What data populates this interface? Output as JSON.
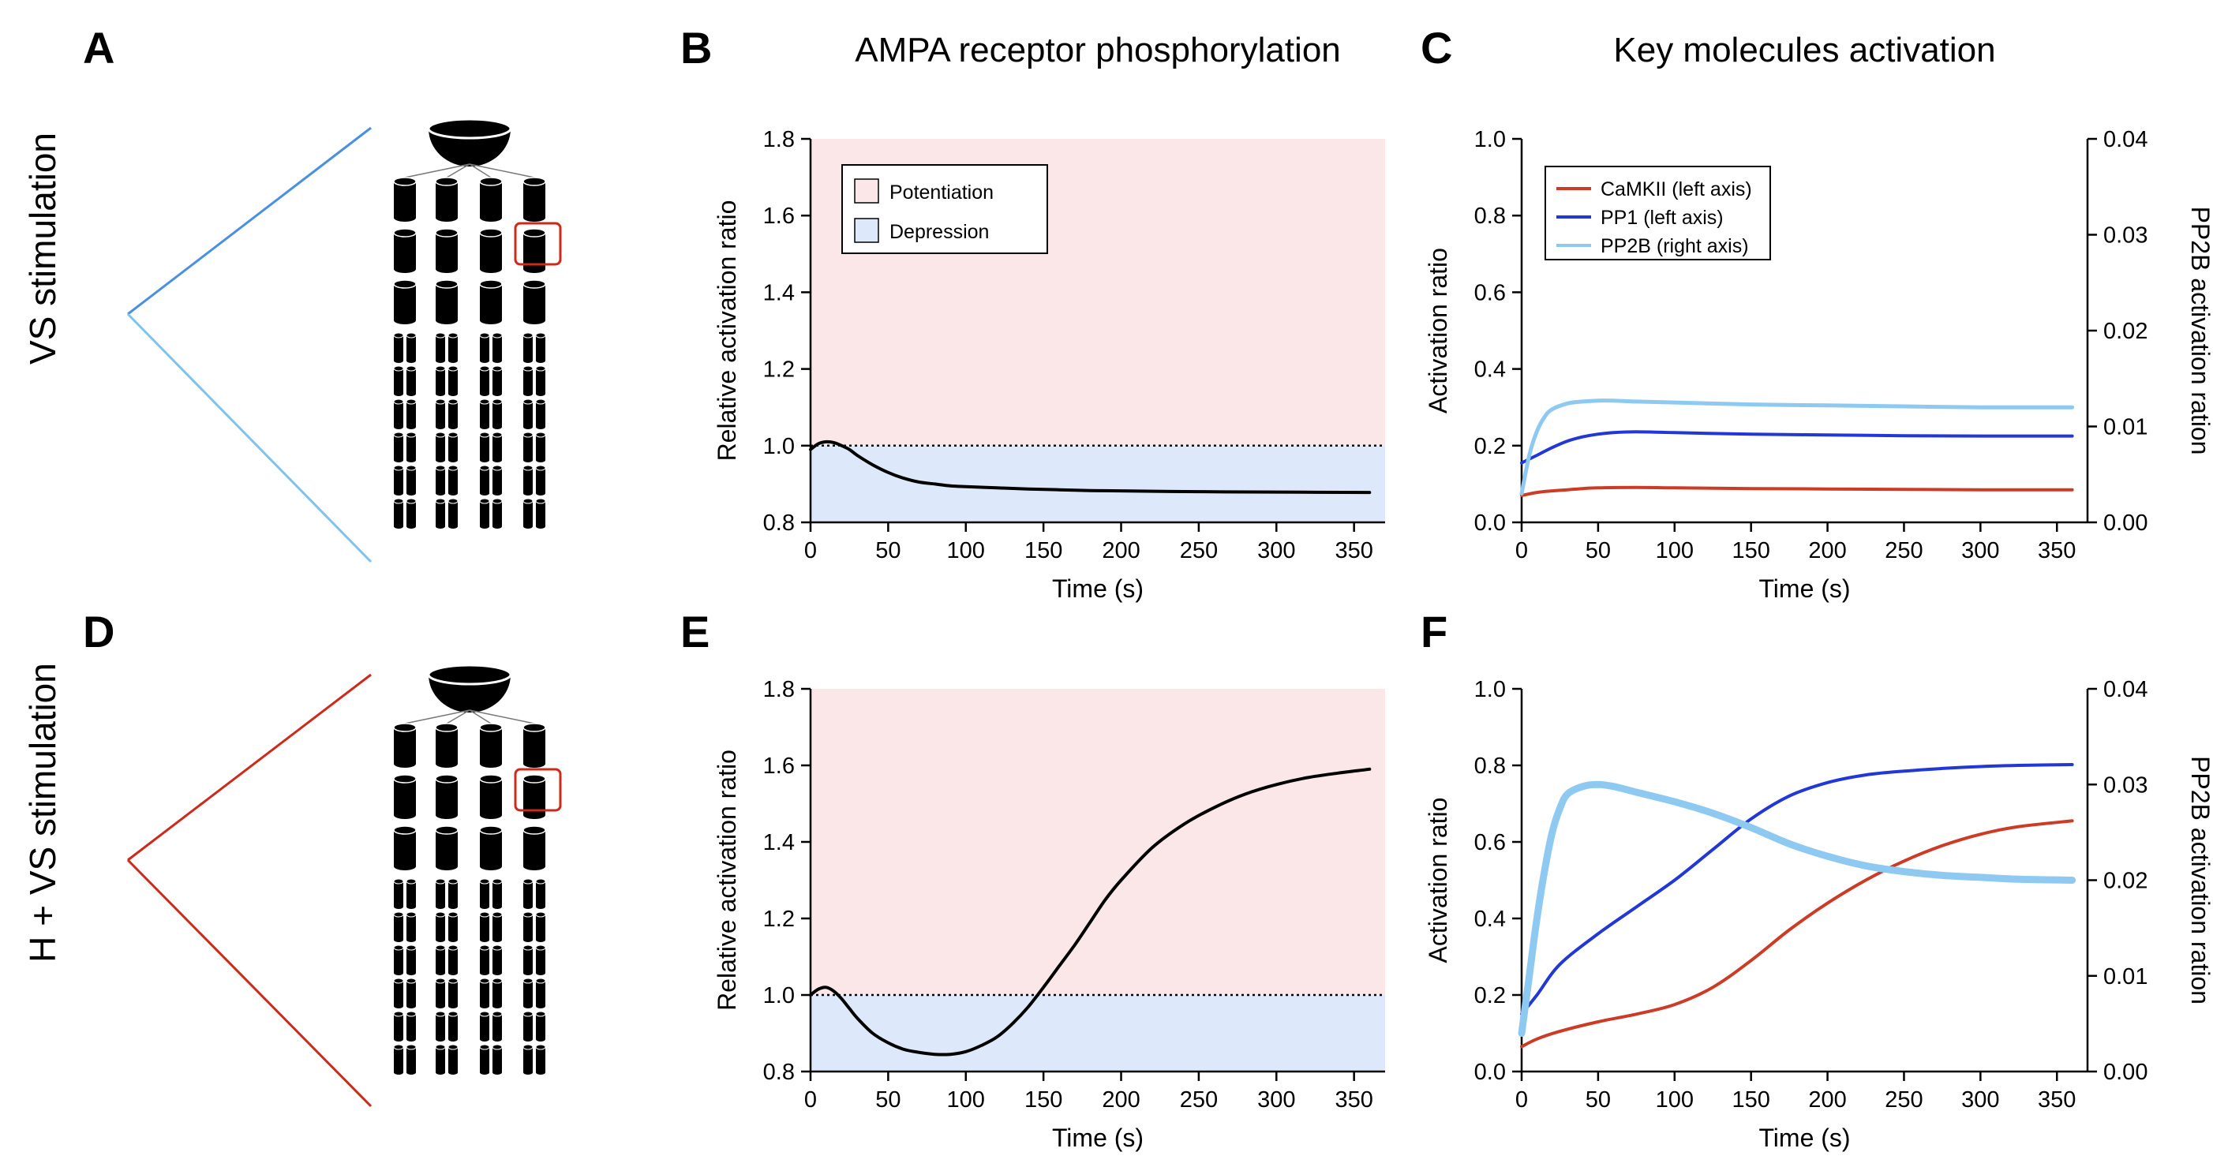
{
  "panel_labels": [
    "A",
    "B",
    "C",
    "D",
    "E",
    "F"
  ],
  "row_labels": {
    "top": "VS stimulation",
    "bottom": "H + VS stimulation"
  },
  "colors": {
    "potentiation_bg": "#fbe7e7",
    "depression_bg": "#dde9fa",
    "camkii": "#cc3b26",
    "pp1": "#2137d6",
    "pp2b": "#8ec9f2",
    "top_wedge_upper": "#4a90e2",
    "top_wedge_lower": "#7ec3ec",
    "bottom_wedge": "#cc2a1a",
    "highlight_box": "#cc2a1a"
  },
  "diagram": {
    "icons": [
      "bowl-icon",
      "cylinder-icon",
      "highlight-box"
    ],
    "columns": 4,
    "big_rows": 3,
    "small_rows": 6
  },
  "chart_data": [
    {
      "id": "B",
      "type": "line",
      "title": "AMPA receptor phosphorylation",
      "xlabel": "Time (s)",
      "ylabel": "Relative activation ratio",
      "xlim": [
        0,
        370
      ],
      "ylim": [
        0.8,
        1.8
      ],
      "xticks": [
        0,
        50,
        100,
        150,
        200,
        250,
        300,
        350
      ],
      "yticks": [
        0.8,
        1.0,
        1.2,
        1.4,
        1.6,
        1.8
      ],
      "reference_line": 1.0,
      "regions": [
        {
          "name": "Potentiation",
          "from": 1.0,
          "to": 1.8
        },
        {
          "name": "Depression",
          "from": 0.8,
          "to": 1.0
        }
      ],
      "legend": [
        "Potentiation",
        "Depression"
      ],
      "legend_position": "top-left",
      "series": [
        {
          "x": [
            0,
            5,
            10,
            15,
            20,
            25,
            30,
            40,
            50,
            60,
            70,
            80,
            90,
            100,
            120,
            140,
            160,
            180,
            200,
            250,
            300,
            360
          ],
          "y": [
            0.99,
            1.005,
            1.01,
            1.008,
            1.0,
            0.99,
            0.975,
            0.95,
            0.93,
            0.915,
            0.905,
            0.9,
            0.895,
            0.893,
            0.89,
            0.887,
            0.885,
            0.883,
            0.882,
            0.88,
            0.879,
            0.878
          ]
        }
      ]
    },
    {
      "id": "C",
      "type": "line",
      "title": "Key molecules activation",
      "xlabel": "Time (s)",
      "ylabel": "Activation  ratio",
      "y2label": "PP2B activation ration",
      "xlim": [
        0,
        370
      ],
      "ylim": [
        0,
        1.0
      ],
      "y2lim": [
        0,
        0.04
      ],
      "xticks": [
        0,
        50,
        100,
        150,
        200,
        250,
        300,
        350
      ],
      "yticks": [
        0.0,
        0.2,
        0.4,
        0.6,
        0.8,
        1.0
      ],
      "y2ticks": [
        0.0,
        0.01,
        0.02,
        0.03,
        0.04
      ],
      "legend_position": "top-left",
      "series": [
        {
          "name": "CaMKII (left axis)",
          "axis": "left",
          "x": [
            0,
            10,
            20,
            30,
            40,
            50,
            75,
            100,
            150,
            200,
            250,
            300,
            360
          ],
          "y": [
            0.07,
            0.078,
            0.082,
            0.085,
            0.088,
            0.09,
            0.091,
            0.09,
            0.088,
            0.087,
            0.086,
            0.085,
            0.085
          ]
        },
        {
          "name": "PP1 (left axis)",
          "axis": "left",
          "x": [
            0,
            10,
            20,
            30,
            40,
            50,
            60,
            75,
            100,
            150,
            200,
            250,
            300,
            360
          ],
          "y": [
            0.155,
            0.175,
            0.195,
            0.212,
            0.223,
            0.23,
            0.234,
            0.236,
            0.234,
            0.23,
            0.228,
            0.226,
            0.225,
            0.225
          ]
        },
        {
          "name": "PP2B (right axis)",
          "axis": "right",
          "x": [
            0,
            5,
            10,
            15,
            20,
            30,
            40,
            50,
            60,
            75,
            100,
            150,
            200,
            250,
            300,
            360
          ],
          "y": [
            0.003,
            0.007,
            0.0095,
            0.011,
            0.0118,
            0.0124,
            0.0126,
            0.0127,
            0.0127,
            0.0126,
            0.0125,
            0.0123,
            0.0122,
            0.0121,
            0.012,
            0.012
          ]
        }
      ]
    },
    {
      "id": "E",
      "type": "line",
      "title": "",
      "xlabel": "Time (s)",
      "ylabel": "Relative activation ratio",
      "xlim": [
        0,
        370
      ],
      "ylim": [
        0.8,
        1.8
      ],
      "xticks": [
        0,
        50,
        100,
        150,
        200,
        250,
        300,
        350
      ],
      "yticks": [
        0.8,
        1.0,
        1.2,
        1.4,
        1.6,
        1.8
      ],
      "reference_line": 1.0,
      "regions": [
        {
          "name": "Potentiation",
          "from": 1.0,
          "to": 1.8
        },
        {
          "name": "Depression",
          "from": 0.8,
          "to": 1.0
        }
      ],
      "series": [
        {
          "x": [
            0,
            5,
            10,
            15,
            20,
            25,
            30,
            40,
            50,
            60,
            70,
            80,
            90,
            100,
            110,
            120,
            130,
            140,
            150,
            160,
            170,
            180,
            190,
            200,
            220,
            240,
            260,
            280,
            300,
            320,
            340,
            360
          ],
          "y": [
            1.0,
            1.015,
            1.02,
            1.01,
            0.99,
            0.965,
            0.94,
            0.9,
            0.875,
            0.858,
            0.85,
            0.845,
            0.845,
            0.852,
            0.868,
            0.89,
            0.925,
            0.968,
            1.02,
            1.075,
            1.13,
            1.19,
            1.25,
            1.3,
            1.385,
            1.445,
            1.49,
            1.525,
            1.55,
            1.568,
            1.58,
            1.59
          ]
        }
      ]
    },
    {
      "id": "F",
      "type": "line",
      "title": "",
      "xlabel": "Time (s)",
      "ylabel": "Activation  ratio",
      "y2label": "PP2B activation ration",
      "xlim": [
        0,
        370
      ],
      "ylim": [
        0,
        1.0
      ],
      "y2lim": [
        0,
        0.04
      ],
      "xticks": [
        0,
        50,
        100,
        150,
        200,
        250,
        300,
        350
      ],
      "yticks": [
        0.0,
        0.2,
        0.4,
        0.6,
        0.8,
        1.0
      ],
      "y2ticks": [
        0.0,
        0.01,
        0.02,
        0.03,
        0.04
      ],
      "series": [
        {
          "name": "CaMKII",
          "axis": "left",
          "x": [
            0,
            10,
            25,
            50,
            75,
            100,
            125,
            150,
            175,
            200,
            225,
            250,
            275,
            300,
            325,
            360
          ],
          "y": [
            0.065,
            0.085,
            0.105,
            0.13,
            0.15,
            0.175,
            0.22,
            0.29,
            0.37,
            0.44,
            0.5,
            0.55,
            0.59,
            0.62,
            0.64,
            0.655
          ]
        },
        {
          "name": "PP1",
          "axis": "left",
          "x": [
            0,
            10,
            25,
            50,
            75,
            100,
            125,
            150,
            175,
            200,
            225,
            250,
            275,
            300,
            325,
            360
          ],
          "y": [
            0.15,
            0.2,
            0.28,
            0.36,
            0.43,
            0.5,
            0.58,
            0.66,
            0.72,
            0.755,
            0.775,
            0.785,
            0.792,
            0.797,
            0.8,
            0.802
          ]
        },
        {
          "name": "PP2B",
          "axis": "right",
          "x": [
            0,
            5,
            10,
            15,
            20,
            25,
            30,
            40,
            50,
            60,
            75,
            100,
            125,
            150,
            175,
            200,
            225,
            250,
            275,
            300,
            325,
            360
          ],
          "y": [
            0.004,
            0.01,
            0.016,
            0.021,
            0.025,
            0.0275,
            0.029,
            0.0298,
            0.03,
            0.0298,
            0.0292,
            0.0282,
            0.027,
            0.0255,
            0.0238,
            0.0225,
            0.0215,
            0.0209,
            0.0205,
            0.0203,
            0.0201,
            0.02
          ]
        }
      ]
    }
  ]
}
